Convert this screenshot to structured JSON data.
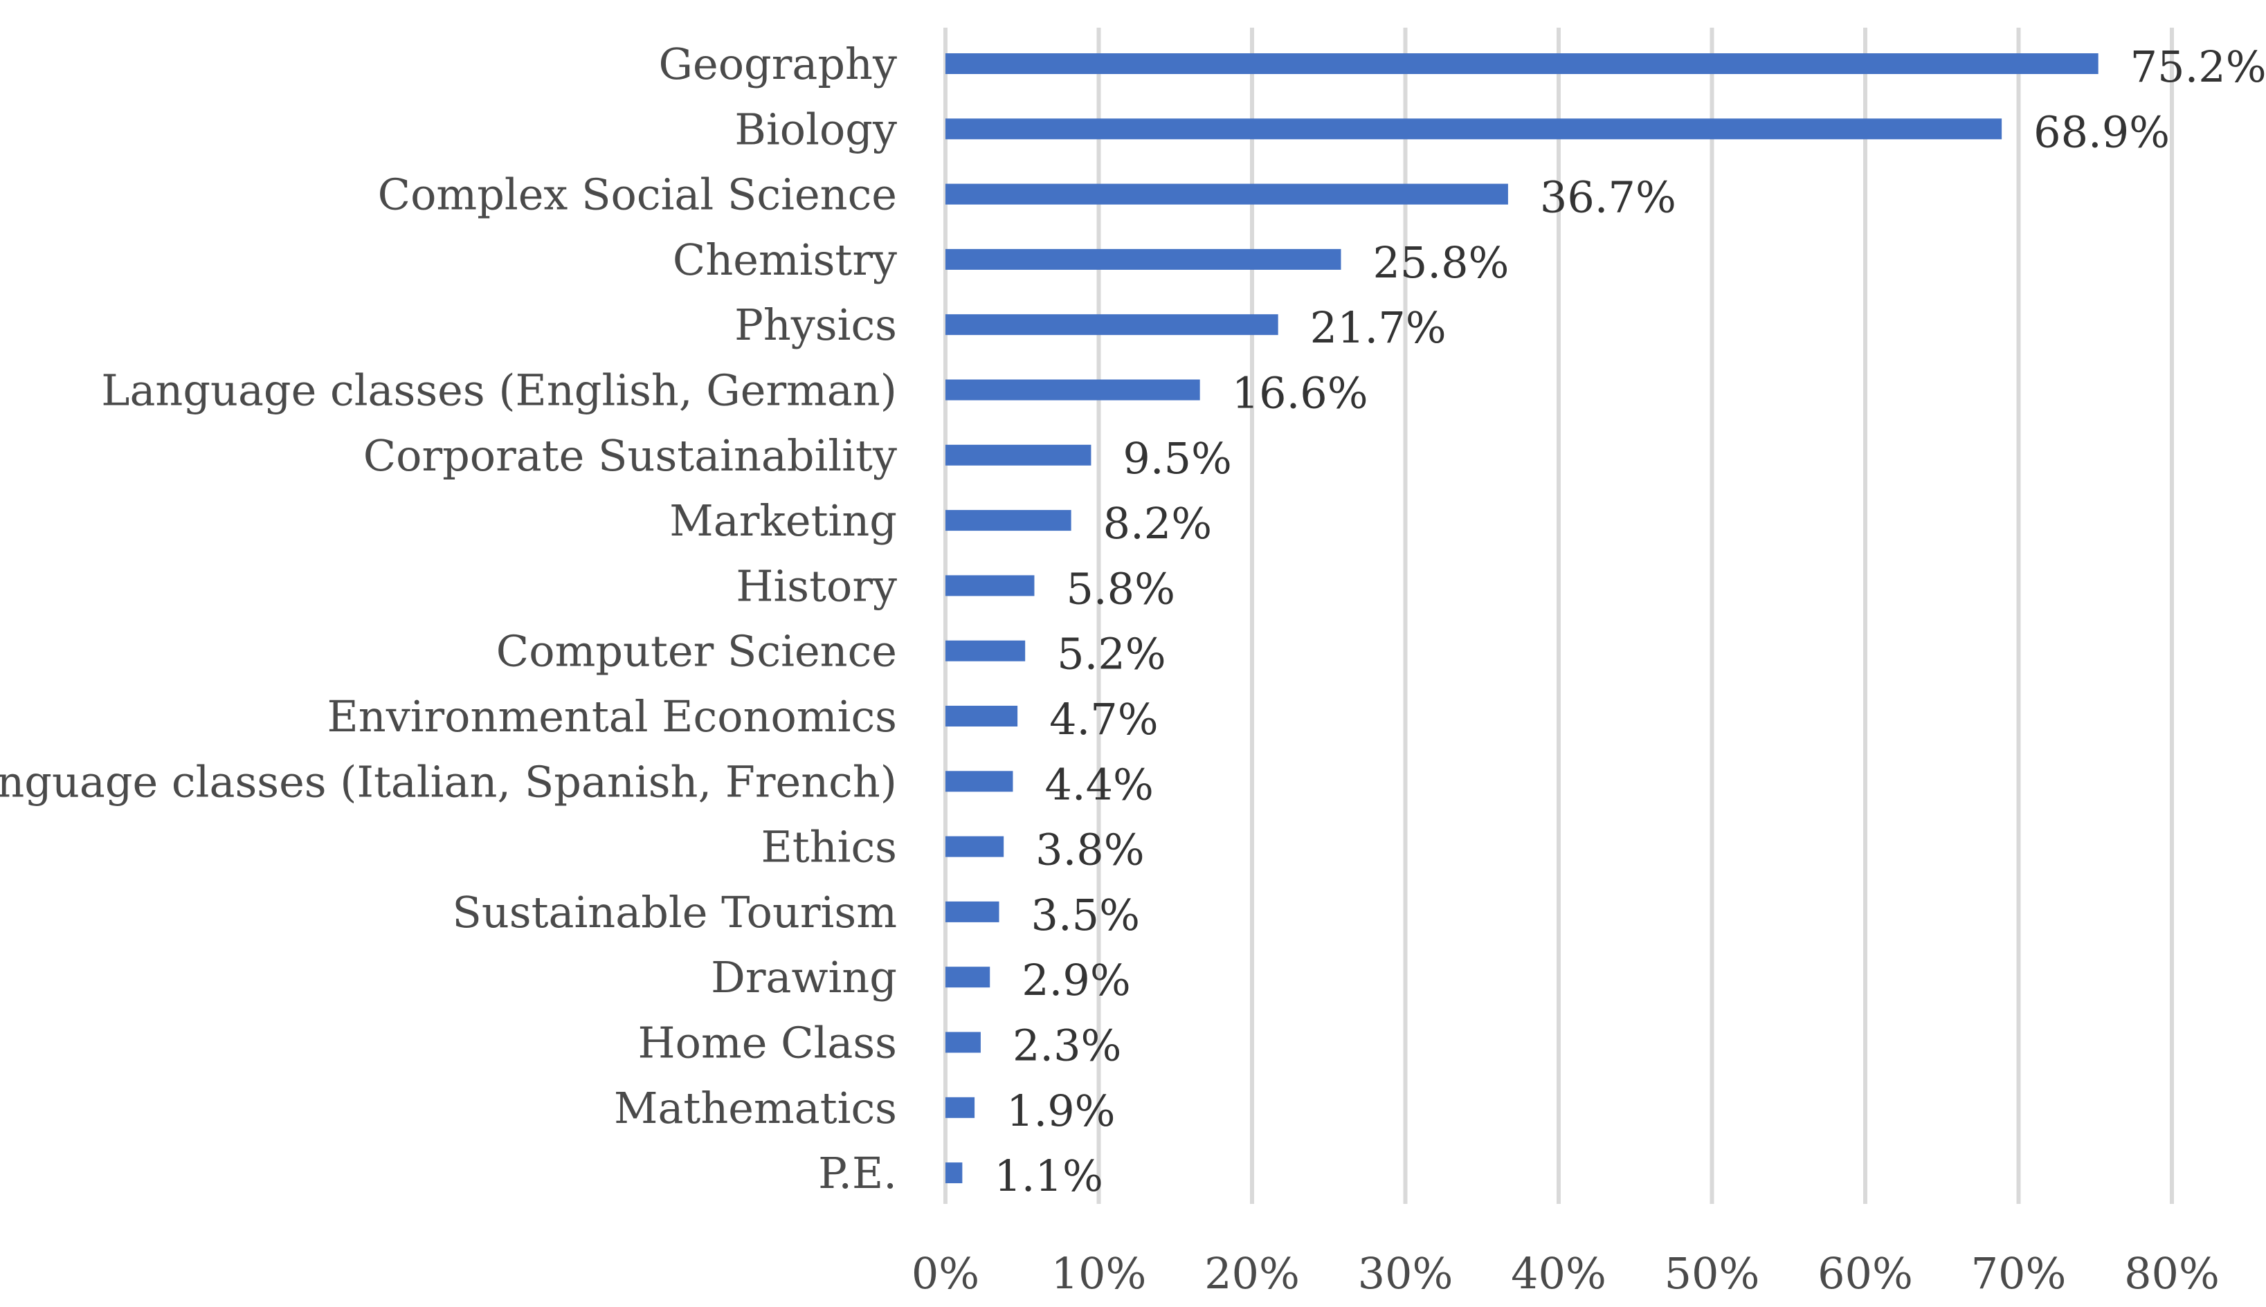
{
  "chart_data": {
    "type": "bar",
    "orientation": "horizontal",
    "title": "",
    "xlabel": "",
    "ylabel": "",
    "xlim": [
      0,
      80
    ],
    "grid": true,
    "bar_color": "#4472c4",
    "categories": [
      "Geography",
      "Biology",
      "Complex Social Science",
      "Chemistry",
      "Physics",
      "Language classes (English, German)",
      "Corporate Sustainability",
      "Marketing",
      "History",
      "Computer Science",
      "Environmental Economics",
      "Language classes (Italian, Spanish, French)",
      "Ethics",
      "Sustainable Tourism",
      "Drawing",
      "Home Class",
      "Mathematics",
      "P.E."
    ],
    "values": [
      75.2,
      68.9,
      36.7,
      25.8,
      21.7,
      16.6,
      9.5,
      8.2,
      5.8,
      5.2,
      4.7,
      4.4,
      3.8,
      3.5,
      2.9,
      2.3,
      1.9,
      1.1
    ],
    "value_labels": [
      "75.2%",
      "68.9%",
      "36.7%",
      "25.8%",
      "21.7%",
      "16.6%",
      "9.5%",
      "8.2%",
      "5.8%",
      "5.2%",
      "4.7%",
      "4.4%",
      "3.8%",
      "3.5%",
      "2.9%",
      "2.3%",
      "1.9%",
      "1.1%"
    ],
    "ticks": [
      0,
      10,
      20,
      30,
      40,
      50,
      60,
      70,
      80
    ],
    "tick_labels": [
      "0%",
      "10%",
      "20%",
      "30%",
      "40%",
      "50%",
      "60%",
      "70%",
      "80%"
    ]
  }
}
